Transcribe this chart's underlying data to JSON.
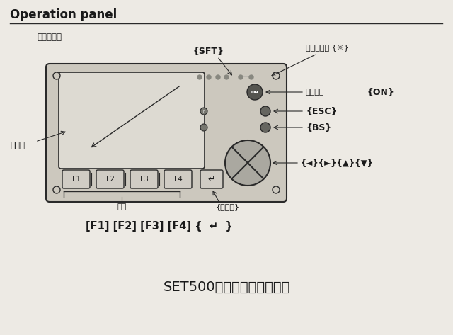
{
  "bg_color": "#edeae4",
  "title_text": "Operation panel",
  "subtitle_text": "基本操作键",
  "bottom_title": "SET500全站仪数据采集键盘",
  "label_sft": "{SFT}",
  "label_light": "照明控制键 {☼}",
  "label_power_cn": "电源开关",
  "label_power": "{ON}",
  "label_esc": "{ESC}",
  "label_bs": "{BS}",
  "label_arrows": "{◄}{►}{▲}{▼}",
  "label_display": "显示屏",
  "label_softkey_cn": "软键",
  "label_softkey": "[F1] [F2] [F3] [F4] {",
  "label_enter": "↵",
  "label_softkey2": "}",
  "label_funckey": "{功能键}",
  "panel_color": "#ccc8be",
  "screen_color": "#e8e4dc",
  "line_color": "#2a2a2a",
  "text_color": "#1a1a1a"
}
